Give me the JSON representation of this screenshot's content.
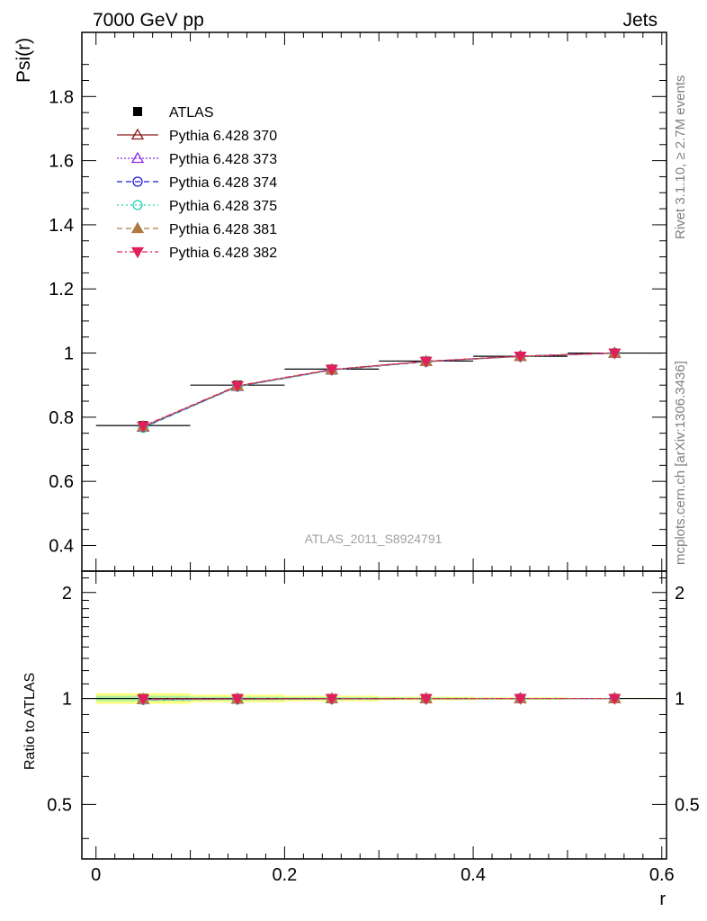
{
  "header": {
    "left": "7000 GeV pp",
    "right": "Jets"
  },
  "side_labels": {
    "rivet": "Rivet 3.1.10, ≥ 2.7M events",
    "mcplots": "mcplots.cern.ch [arXiv:1306.3436]"
  },
  "watermark": "ATLAS_2011_S8924791",
  "chart_data": {
    "type": "line",
    "x": [
      0.05,
      0.15,
      0.25,
      0.35,
      0.45,
      0.55
    ],
    "x_bins": [
      [
        0.0,
        0.1
      ],
      [
        0.1,
        0.2
      ],
      [
        0.2,
        0.3
      ],
      [
        0.3,
        0.4
      ],
      [
        0.4,
        0.5
      ],
      [
        0.5,
        0.6
      ]
    ],
    "xlabel": "r",
    "xlim": [
      -0.015,
      0.605
    ],
    "xticks": [
      0,
      0.2,
      0.4,
      0.6
    ],
    "xtick_labels": [
      "0",
      "0.2",
      "0.4",
      "0.6"
    ],
    "main": {
      "ylabel": "Psi(r)",
      "ylim": [
        0.32,
        2.0
      ],
      "yticks": [
        0.4,
        0.6,
        0.8,
        1,
        1.2,
        1.4,
        1.6,
        1.8
      ],
      "ytick_labels": [
        "0.4",
        "0.6",
        "0.8",
        "1",
        "1.2",
        "1.4",
        "1.6",
        "1.8"
      ],
      "data": {
        "name": "ATLAS",
        "values": [
          0.774,
          0.9,
          0.95,
          0.975,
          0.99,
          1.0
        ],
        "errors": [
          0.012,
          0.01,
          0.008,
          0.006,
          0.004,
          0.002
        ]
      },
      "series": [
        {
          "name": "Pythia 6.428 370",
          "color": "#8b1a1a",
          "marker": "triangle-up-open",
          "dash": "",
          "values": [
            0.77,
            0.897,
            0.948,
            0.974,
            0.99,
            1.0
          ]
        },
        {
          "name": "Pythia 6.428 373",
          "color": "#8a2be2",
          "marker": "triangle-up-open",
          "dash": "2,2",
          "values": [
            0.769,
            0.896,
            0.948,
            0.974,
            0.99,
            1.0
          ]
        },
        {
          "name": "Pythia 6.428 374",
          "color": "#1a1ad8",
          "marker": "circle-open",
          "dash": "6,4",
          "values": [
            0.768,
            0.896,
            0.947,
            0.973,
            0.99,
            1.0
          ]
        },
        {
          "name": "Pythia 6.428 375",
          "color": "#20d0b0",
          "marker": "circle-open",
          "dash": "2,3",
          "values": [
            0.767,
            0.895,
            0.947,
            0.973,
            0.989,
            1.0
          ]
        },
        {
          "name": "Pythia 6.428 381",
          "color": "#b07a40",
          "marker": "triangle-up-filled",
          "dash": "6,4",
          "values": [
            0.771,
            0.897,
            0.948,
            0.974,
            0.99,
            1.0
          ]
        },
        {
          "name": "Pythia 6.428 382",
          "color": "#e0205a",
          "marker": "triangle-down-filled",
          "dash": "6,3,2,3",
          "values": [
            0.772,
            0.898,
            0.949,
            0.974,
            0.99,
            1.0
          ]
        }
      ]
    },
    "ratio": {
      "ylabel": "Ratio to ATLAS",
      "ylim": [
        0.35,
        2.3
      ],
      "yticks": [
        0.5,
        1,
        2
      ],
      "ytick_labels": [
        "0.5",
        "1",
        "2"
      ],
      "band_outer": [
        0.035,
        0.025,
        0.018,
        0.012,
        0.008,
        0.004
      ],
      "band_inner": [
        0.018,
        0.012,
        0.009,
        0.006,
        0.004,
        0.002
      ],
      "band_colors": {
        "outer": "#ffff80",
        "inner": "#b0f0a0"
      },
      "series_values": [
        [
          0.995,
          0.997,
          0.998,
          0.999,
          1.0,
          1.0
        ],
        [
          0.994,
          0.996,
          0.998,
          0.999,
          1.0,
          1.0
        ],
        [
          0.992,
          0.996,
          0.997,
          0.998,
          1.0,
          1.0
        ],
        [
          0.991,
          0.994,
          0.997,
          0.998,
          0.999,
          1.0
        ],
        [
          0.996,
          0.997,
          0.998,
          0.999,
          1.0,
          1.0
        ],
        [
          0.997,
          0.998,
          0.999,
          0.999,
          1.0,
          1.0
        ]
      ]
    }
  }
}
